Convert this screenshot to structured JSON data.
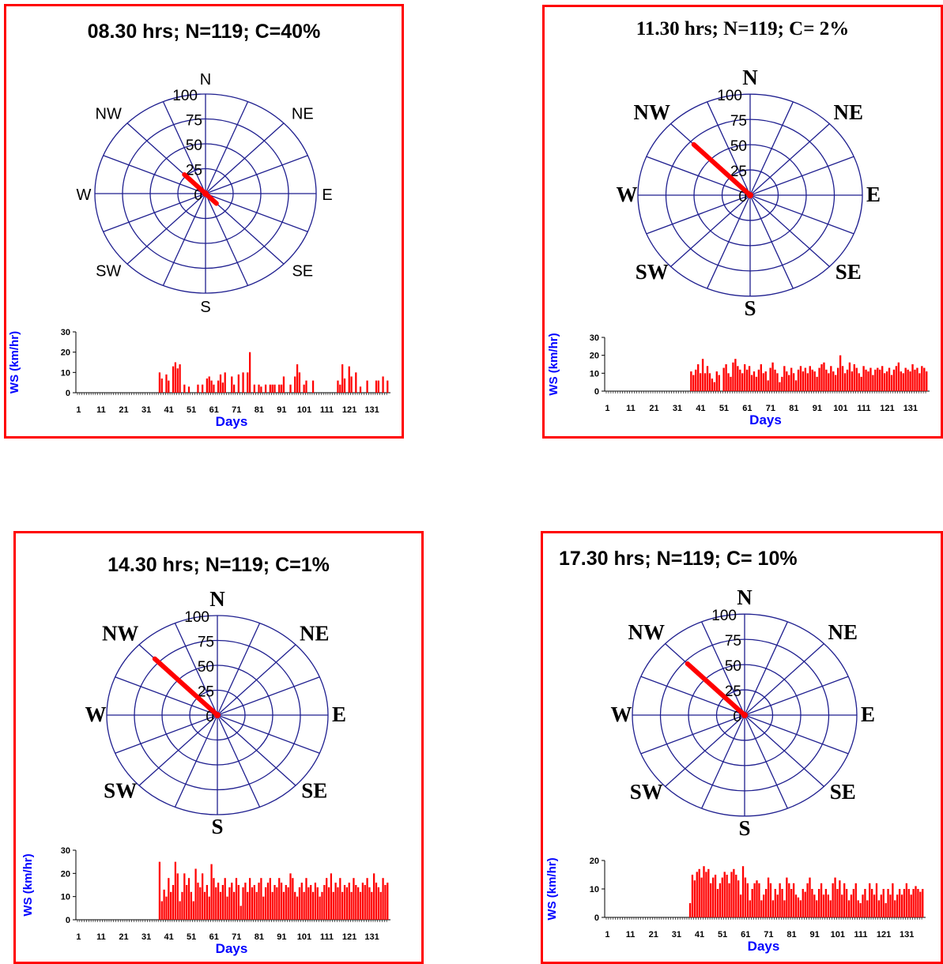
{
  "chart_data": [
    {
      "type": "windrose_with_bar",
      "title": "08.30 hrs; N=119; C=40%",
      "rose": {
        "directions": [
          "N",
          "NE",
          "E",
          "SE",
          "S",
          "SW",
          "W",
          "NW"
        ],
        "rings": [
          0,
          25,
          50,
          75,
          100
        ],
        "rmax": 100,
        "arms": [
          {
            "dir_deg": 315,
            "value": 27
          },
          {
            "dir_deg": 135,
            "value": 14
          }
        ]
      },
      "bars": {
        "ylabel": "WS (km/hr)",
        "xlabel": "Days",
        "yticks": [
          0,
          10,
          20,
          30
        ],
        "ymax": 30,
        "xticks": [
          1,
          11,
          21,
          31,
          41,
          51,
          61,
          71,
          81,
          91,
          101,
          111,
          121,
          131
        ],
        "values": [
          0,
          0,
          0,
          0,
          0,
          0,
          0,
          0,
          0,
          0,
          0,
          0,
          0,
          0,
          0,
          0,
          0,
          0,
          0,
          0,
          0,
          0,
          0,
          0,
          0,
          0,
          0,
          0,
          0,
          0,
          0,
          0,
          0,
          0,
          0,
          0,
          10,
          7,
          0,
          9,
          6,
          0,
          13,
          15,
          12,
          14,
          0,
          4,
          0,
          3,
          0,
          0,
          0,
          4,
          0,
          4,
          0,
          7,
          8,
          6,
          4,
          0,
          6,
          9,
          5,
          10,
          0,
          0,
          8,
          4,
          0,
          9,
          0,
          10,
          0,
          10,
          20,
          0,
          4,
          0,
          4,
          3,
          0,
          4,
          0,
          4,
          4,
          4,
          0,
          4,
          4,
          8,
          0,
          0,
          4,
          0,
          8,
          14,
          10,
          0,
          4,
          6,
          0,
          0,
          6,
          0,
          0,
          0,
          0,
          0,
          0,
          0,
          0,
          0,
          0,
          6,
          4,
          14,
          7,
          0,
          13,
          8,
          0,
          10,
          0,
          3,
          0,
          0,
          6,
          0,
          0,
          0,
          6,
          6,
          0,
          8,
          0,
          6
        ]
      }
    },
    {
      "type": "windrose_with_bar",
      "title": "11.30 hrs; N=119; C= 2%",
      "rose": {
        "directions": [
          "N",
          "NE",
          "E",
          "SE",
          "S",
          "SW",
          "W",
          "NW"
        ],
        "rings": [
          0,
          25,
          50,
          75,
          100
        ],
        "rmax": 100,
        "arms": [
          {
            "dir_deg": 315,
            "value": 71
          }
        ]
      },
      "bars": {
        "ylabel": "WS (km/hr)",
        "xlabel": "Days",
        "yticks": [
          0,
          10,
          20,
          30
        ],
        "ymax": 30,
        "xticks": [
          1,
          11,
          21,
          31,
          41,
          51,
          61,
          71,
          81,
          91,
          101,
          111,
          121,
          131
        ],
        "values": [
          0,
          0,
          0,
          0,
          0,
          0,
          0,
          0,
          0,
          0,
          0,
          0,
          0,
          0,
          0,
          0,
          0,
          0,
          0,
          0,
          0,
          0,
          0,
          0,
          0,
          0,
          0,
          0,
          0,
          0,
          0,
          0,
          0,
          0,
          0,
          0,
          11,
          9,
          12,
          15,
          10,
          18,
          10,
          14,
          10,
          7,
          5,
          11,
          9,
          0,
          13,
          15,
          10,
          8,
          16,
          18,
          14,
          12,
          10,
          15,
          12,
          14,
          9,
          11,
          8,
          12,
          15,
          10,
          11,
          6,
          13,
          16,
          12,
          10,
          5,
          8,
          14,
          11,
          9,
          13,
          10,
          6,
          12,
          14,
          11,
          13,
          10,
          14,
          12,
          11,
          8,
          13,
          15,
          16,
          12,
          10,
          14,
          11,
          9,
          13,
          20,
          14,
          10,
          12,
          16,
          11,
          15,
          13,
          10,
          8,
          14,
          12,
          11,
          13,
          9,
          12,
          13,
          12,
          14,
          10,
          11,
          13,
          9,
          12,
          14,
          16,
          11,
          10,
          13,
          12,
          11,
          15,
          12,
          13,
          10,
          14,
          13,
          11
        ]
      }
    },
    {
      "type": "windrose_with_bar",
      "title": "14.30 hrs; N=119; C=1%",
      "rose": {
        "directions": [
          "N",
          "NE",
          "E",
          "SE",
          "S",
          "SW",
          "W",
          "NW"
        ],
        "rings": [
          0,
          25,
          50,
          75,
          100
        ],
        "rmax": 100,
        "arms": [
          {
            "dir_deg": 315,
            "value": 80
          }
        ]
      },
      "bars": {
        "ylabel": "WS (km/hr)",
        "xlabel": "Days",
        "yticks": [
          0,
          10,
          20,
          30
        ],
        "ymax": 30,
        "xticks": [
          1,
          11,
          21,
          31,
          41,
          51,
          61,
          71,
          81,
          91,
          101,
          111,
          121,
          131
        ],
        "values": [
          0,
          0,
          0,
          0,
          0,
          0,
          0,
          0,
          0,
          0,
          0,
          0,
          0,
          0,
          0,
          0,
          0,
          0,
          0,
          0,
          0,
          0,
          0,
          0,
          0,
          0,
          0,
          0,
          0,
          0,
          0,
          0,
          0,
          0,
          0,
          0,
          25,
          8,
          13,
          10,
          18,
          12,
          15,
          25,
          20,
          8,
          12,
          20,
          15,
          18,
          12,
          8,
          22,
          16,
          14,
          20,
          12,
          15,
          10,
          24,
          18,
          14,
          16,
          12,
          15,
          18,
          10,
          14,
          16,
          12,
          18,
          15,
          6,
          14,
          16,
          12,
          18,
          14,
          15,
          12,
          16,
          18,
          10,
          14,
          16,
          18,
          12,
          15,
          14,
          18,
          16,
          12,
          15,
          14,
          20,
          18,
          12,
          10,
          14,
          16,
          12,
          18,
          14,
          15,
          12,
          16,
          14,
          10,
          12,
          15,
          18,
          14,
          20,
          12,
          16,
          14,
          18,
          12,
          15,
          14,
          16,
          12,
          18,
          15,
          14,
          12,
          16,
          15,
          18,
          14,
          12,
          20,
          16,
          14,
          12,
          18,
          15,
          16
        ]
      }
    },
    {
      "type": "windrose_with_bar",
      "title": "17.30 hrs; N=119; C= 10%",
      "rose": {
        "directions": [
          "N",
          "NE",
          "E",
          "SE",
          "S",
          "SW",
          "W",
          "NW"
        ],
        "rings": [
          0,
          25,
          50,
          75,
          100
        ],
        "rmax": 100,
        "arms": [
          {
            "dir_deg": 315,
            "value": 72
          }
        ]
      },
      "bars": {
        "ylabel": "WS (km/hr)",
        "xlabel": "Days",
        "yticks": [
          0,
          10,
          20
        ],
        "ymax": 20,
        "xticks": [
          1,
          11,
          21,
          31,
          41,
          51,
          61,
          71,
          81,
          91,
          101,
          111,
          121,
          131
        ],
        "values": [
          0,
          0,
          0,
          0,
          0,
          0,
          0,
          0,
          0,
          0,
          0,
          0,
          0,
          0,
          0,
          0,
          0,
          0,
          0,
          0,
          0,
          0,
          0,
          0,
          0,
          0,
          0,
          0,
          0,
          0,
          0,
          0,
          0,
          0,
          0,
          0,
          5,
          15,
          13,
          16,
          17,
          14,
          18,
          16,
          17,
          12,
          14,
          15,
          10,
          12,
          14,
          16,
          15,
          12,
          16,
          17,
          15,
          13,
          8,
          18,
          14,
          12,
          6,
          10,
          12,
          13,
          12,
          6,
          8,
          10,
          14,
          12,
          6,
          10,
          8,
          12,
          10,
          6,
          14,
          12,
          10,
          12,
          8,
          7,
          6,
          10,
          9,
          12,
          14,
          10,
          8,
          6,
          10,
          12,
          8,
          10,
          8,
          6,
          12,
          14,
          10,
          13,
          8,
          12,
          10,
          6,
          8,
          10,
          12,
          6,
          5,
          8,
          10,
          6,
          12,
          10,
          8,
          12,
          6,
          8,
          10,
          5,
          10,
          8,
          12,
          6,
          8,
          10,
          8,
          10,
          12,
          10,
          8,
          10,
          11,
          10,
          9,
          10
        ]
      }
    }
  ]
}
